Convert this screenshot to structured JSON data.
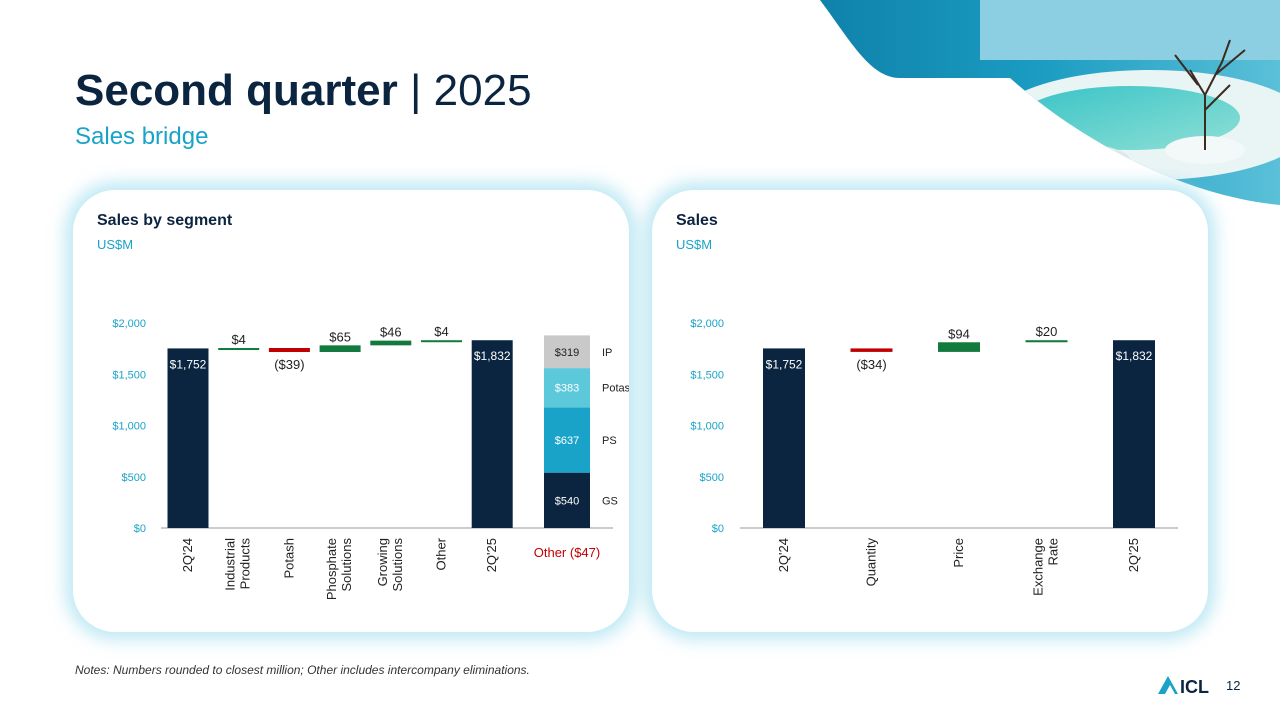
{
  "header": {
    "title_strong": "Second quarter",
    "title_separator": "|",
    "title_year": "2025",
    "subtitle": "Sales bridge"
  },
  "left_panel": {
    "title": "Sales by segment",
    "unit": "US$M"
  },
  "right_panel": {
    "title": "Sales",
    "unit": "US$M"
  },
  "notes": "Notes: Numbers rounded to closest million; Other includes intercompany eliminations.",
  "logo_text": "ICL",
  "page_number": "12",
  "colors": {
    "navy": "#0b2540",
    "teal": "#1aa3c8",
    "green": "#127a3d",
    "red": "#c00000",
    "light_teal": "#5cc9db",
    "grey": "#c9c9c9"
  },
  "chart_data": [
    {
      "type": "bar",
      "subtype": "waterfall",
      "yticks": [
        "$0",
        "$500",
        "$1,000",
        "$1,500",
        "$2,000"
      ],
      "ylim": [
        0,
        2000
      ],
      "categories": [
        "2Q'24",
        "Industrial Products",
        "Potash",
        "Phosphate Solutions",
        "Growing Solutions",
        "Other",
        "2Q'25"
      ],
      "values": [
        1752,
        4,
        -39,
        65,
        46,
        4,
        1832
      ],
      "kinds": [
        "total",
        "delta",
        "delta",
        "delta",
        "delta",
        "delta",
        "total"
      ],
      "labels": [
        "$1,752",
        "$4",
        "($39)",
        "$65",
        "$46",
        "$4",
        "$1,832"
      ],
      "stacked_extra": {
        "category_label": "Other ($47)",
        "segments": [
          {
            "name": "GS",
            "value": 540,
            "label": "$540",
            "color": "#0b2540"
          },
          {
            "name": "PS",
            "value": 637,
            "label": "$637",
            "color": "#1aa3c8"
          },
          {
            "name": "Potash",
            "value": 383,
            "label": "$383",
            "color": "#5cc9db"
          },
          {
            "name": "IP",
            "value": 319,
            "label": "$319",
            "color": "#c9c9c9"
          }
        ]
      }
    },
    {
      "type": "bar",
      "subtype": "waterfall",
      "yticks": [
        "$0",
        "$500",
        "$1,000",
        "$1,500",
        "$2,000"
      ],
      "ylim": [
        0,
        2000
      ],
      "categories": [
        "2Q'24",
        "Quantity",
        "Price",
        "Exchange Rate",
        "2Q'25"
      ],
      "values": [
        1752,
        -34,
        94,
        20,
        1832
      ],
      "kinds": [
        "total",
        "delta",
        "delta",
        "delta",
        "total"
      ],
      "labels": [
        "$1,752",
        "($34)",
        "$94",
        "$20",
        "$1,832"
      ]
    }
  ]
}
